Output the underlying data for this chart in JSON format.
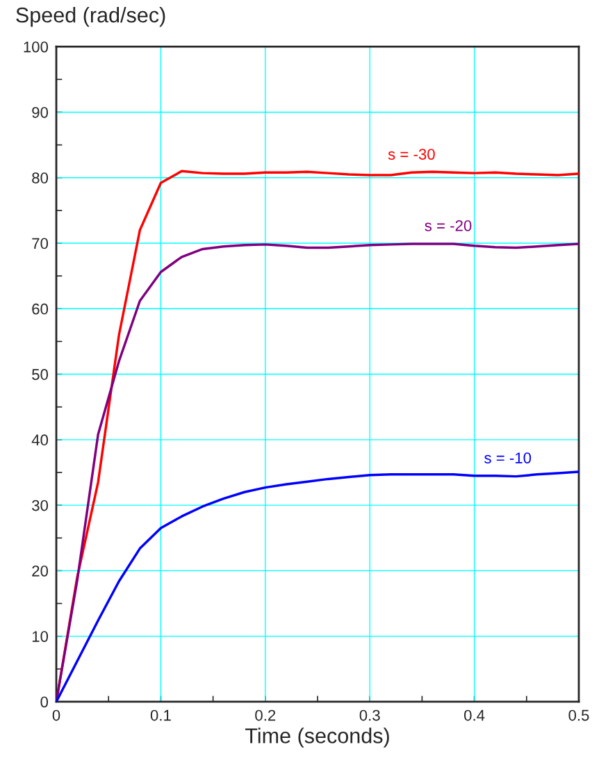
{
  "chart_data": {
    "type": "line",
    "ylabel": "Speed (rad/sec)",
    "xlabel": "Time (seconds)",
    "x": [
      0,
      0.02,
      0.04,
      0.06,
      0.08,
      0.1,
      0.12,
      0.14,
      0.16,
      0.18,
      0.2,
      0.22,
      0.24,
      0.26,
      0.28,
      0.3,
      0.32,
      0.34,
      0.36,
      0.38,
      0.4,
      0.42,
      0.44,
      0.46,
      0.48,
      0.5
    ],
    "series": [
      {
        "name": "s = -30",
        "color": "#ff0000",
        "values": [
          0,
          19,
          33.5,
          56,
          72,
          79.2,
          81,
          80.7,
          80.6,
          80.6,
          80.8,
          80.8,
          80.9,
          80.7,
          80.5,
          80.4,
          80.4,
          80.8,
          80.9,
          80.8,
          80.7,
          80.8,
          80.6,
          80.5,
          80.4,
          80.6
        ]
      },
      {
        "name": "s = -20",
        "color": "#800080",
        "values": [
          0,
          18.5,
          40.8,
          52,
          61.2,
          65.6,
          67.9,
          69.1,
          69.5,
          69.7,
          69.8,
          69.6,
          69.3,
          69.3,
          69.5,
          69.7,
          69.8,
          69.9,
          69.9,
          69.9,
          69.6,
          69.4,
          69.3,
          69.5,
          69.7,
          69.9
        ]
      },
      {
        "name": "s = -10",
        "color": "#0000ff",
        "values": [
          0,
          6.2,
          12.4,
          18.4,
          23.4,
          26.5,
          28.3,
          29.8,
          31.0,
          32.0,
          32.7,
          33.2,
          33.6,
          34.0,
          34.3,
          34.6,
          34.7,
          34.7,
          34.7,
          34.7,
          34.5,
          34.5,
          34.4,
          34.7,
          34.9,
          35.1
        ]
      }
    ],
    "xlim": [
      0,
      0.5
    ],
    "ylim": [
      0,
      100
    ],
    "xticks": [
      0,
      {
        "value": 0.05,
        "label": null
      },
      0.1,
      {
        "value": 0.15,
        "label": null
      },
      0.2,
      {
        "value": 0.25,
        "label": null
      },
      0.3,
      {
        "value": 0.35,
        "label": null
      },
      0.4,
      {
        "value": 0.45,
        "label": null
      },
      0.5
    ],
    "yticks": [
      0,
      {
        "value": 5,
        "label": null
      },
      10,
      {
        "value": 15,
        "label": null
      },
      20,
      {
        "value": 25,
        "label": null
      },
      30,
      {
        "value": 35,
        "label": null
      },
      40,
      {
        "value": 45,
        "label": null
      },
      50,
      {
        "value": 55,
        "label": null
      },
      60,
      {
        "value": 65,
        "label": null
      },
      70,
      {
        "value": 75,
        "label": null
      },
      80,
      {
        "value": 85,
        "label": null
      },
      90,
      {
        "value": 95,
        "label": null
      },
      100
    ],
    "grid": true,
    "marker": "none",
    "line_style": "solid"
  }
}
